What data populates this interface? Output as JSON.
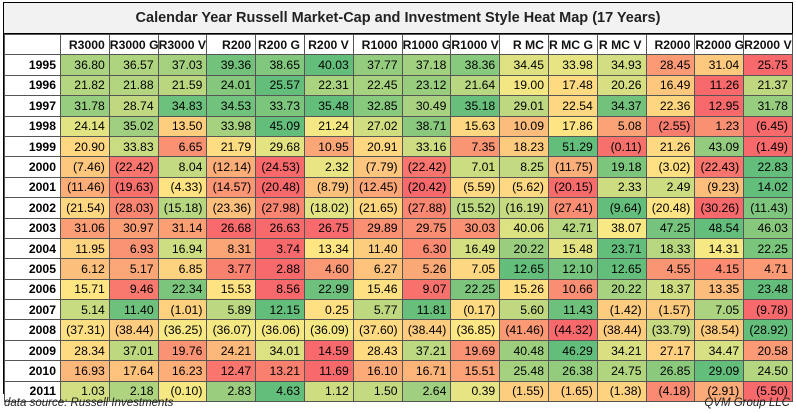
{
  "chart_data": {
    "type": "heatmap",
    "title": "Calendar Year Russell Market-Cap and Investment Style Heat Map (17 Years)",
    "columns": [
      "R3000",
      "R3000 G",
      "R3000 V",
      "R200",
      "R200 G",
      "R200 V",
      "R1000",
      "R1000 G",
      "R1000 V",
      "R MC",
      "R MC G",
      "R MC V",
      "R2000",
      "R2000 G",
      "R2000 V"
    ],
    "years": [
      "1995",
      "1996",
      "1997",
      "1998",
      "1999",
      "2000",
      "2001",
      "2002",
      "2003",
      "2004",
      "2005",
      "2006",
      "2007",
      "2008",
      "2009",
      "2010",
      "2011"
    ],
    "values": [
      [
        36.8,
        36.57,
        37.03,
        39.36,
        38.65,
        40.03,
        37.77,
        37.18,
        38.36,
        34.45,
        33.98,
        34.93,
        28.45,
        31.04,
        25.75
      ],
      [
        21.82,
        21.88,
        21.59,
        24.01,
        25.57,
        22.31,
        22.45,
        23.12,
        21.64,
        19.0,
        17.48,
        20.26,
        16.49,
        11.26,
        21.37
      ],
      [
        31.78,
        28.74,
        34.83,
        34.53,
        33.73,
        35.48,
        32.85,
        30.49,
        35.18,
        29.01,
        22.54,
        34.37,
        22.36,
        12.95,
        31.78
      ],
      [
        24.14,
        35.02,
        13.5,
        33.98,
        45.09,
        21.24,
        27.02,
        38.71,
        15.63,
        10.09,
        17.86,
        5.08,
        -2.55,
        1.23,
        -6.45
      ],
      [
        20.9,
        33.83,
        6.65,
        21.79,
        29.68,
        10.95,
        20.91,
        33.16,
        7.35,
        18.23,
        51.29,
        -0.11,
        21.26,
        43.09,
        -1.49
      ],
      [
        -7.46,
        -22.42,
        8.04,
        -12.14,
        -24.53,
        2.32,
        -7.79,
        -22.42,
        7.01,
        8.25,
        -11.75,
        19.18,
        -3.02,
        -22.43,
        22.83
      ],
      [
        -11.46,
        -19.63,
        -4.33,
        -14.57,
        -20.48,
        -8.79,
        -12.45,
        -20.42,
        -5.59,
        -5.62,
        -20.15,
        2.33,
        2.49,
        -9.23,
        14.02
      ],
      [
        -21.54,
        -28.03,
        -15.18,
        -23.36,
        -27.98,
        -18.02,
        -21.65,
        -27.88,
        -15.52,
        -16.19,
        -27.41,
        -9.64,
        -20.48,
        -30.26,
        -11.43
      ],
      [
        31.06,
        30.97,
        31.14,
        26.68,
        26.63,
        26.75,
        29.89,
        29.75,
        30.03,
        40.06,
        42.71,
        38.07,
        47.25,
        48.54,
        46.03
      ],
      [
        11.95,
        6.93,
        16.94,
        8.31,
        3.74,
        13.34,
        11.4,
        6.3,
        16.49,
        20.22,
        15.48,
        23.71,
        18.33,
        14.31,
        22.25
      ],
      [
        6.12,
        5.17,
        6.85,
        3.77,
        2.88,
        4.6,
        6.27,
        5.26,
        7.05,
        12.65,
        12.1,
        12.65,
        4.55,
        4.15,
        4.71
      ],
      [
        15.71,
        9.46,
        22.34,
        15.53,
        8.56,
        22.99,
        15.46,
        9.07,
        22.25,
        15.26,
        10.66,
        20.22,
        18.37,
        13.35,
        23.48
      ],
      [
        5.14,
        11.4,
        -1.01,
        5.89,
        12.15,
        0.25,
        5.77,
        11.81,
        -0.17,
        5.6,
        11.43,
        -1.42,
        -1.57,
        7.05,
        -9.78
      ],
      [
        -37.31,
        -38.44,
        -36.25,
        -36.07,
        -36.06,
        -36.09,
        -37.6,
        -38.44,
        -36.85,
        -41.46,
        -44.32,
        -38.44,
        -33.79,
        -38.54,
        -28.92
      ],
      [
        28.34,
        37.01,
        19.76,
        24.21,
        34.01,
        14.59,
        28.43,
        37.21,
        19.69,
        40.48,
        46.29,
        34.21,
        27.17,
        34.47,
        20.58
      ],
      [
        16.93,
        17.64,
        16.23,
        12.47,
        13.21,
        11.69,
        16.1,
        16.71,
        15.51,
        25.48,
        26.38,
        24.75,
        26.85,
        29.09,
        24.5
      ],
      [
        1.03,
        2.18,
        -0.1,
        2.83,
        4.63,
        1.12,
        1.5,
        2.64,
        0.39,
        -1.55,
        -1.65,
        -1.38,
        -4.18,
        -2.91,
        -5.5
      ]
    ],
    "color_scale": {
      "low": "#f8696b",
      "mid": "#ffeb84",
      "high": "#63be7b",
      "scope": "per-row"
    }
  },
  "footer": {
    "source": "data source: Russell Investments",
    "firm": "QVM Group LLC"
  }
}
